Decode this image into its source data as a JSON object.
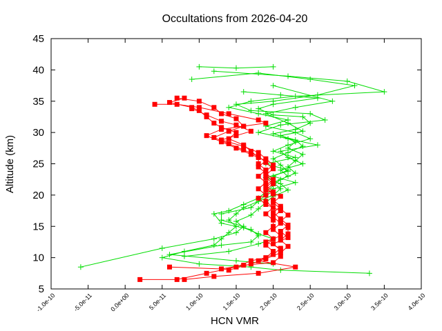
{
  "chart_data": {
    "type": "line",
    "title": "Occultations from 2026-04-20",
    "xlabel": "HCN VMR",
    "ylabel": "Altitude (km)",
    "xlim": [
      -1e-10,
      4e-10
    ],
    "ylim": [
      5,
      45
    ],
    "x_ticks": [
      "-1.0e-10",
      "-5.0e-11",
      "0.0e+00",
      "5.0e-11",
      "1.0e-10",
      "1.5e-10",
      "2.0e-10",
      "2.5e-10",
      "3.0e-10",
      "3.5e-10",
      "4.0e-10"
    ],
    "y_ticks": [
      "5",
      "10",
      "15",
      "20",
      "25",
      "30",
      "35",
      "40",
      "45"
    ],
    "grid": false,
    "legend": "none",
    "series": [
      {
        "color": "#00dd00",
        "marker": "plus",
        "profiles": [
          [
            [
              1e-10,
              40.5
            ],
            [
              1.5e-10,
              40.3
            ],
            [
              2e-10,
              40.5
            ]
          ],
          [
            [
              1.2e-10,
              39.8
            ],
            [
              2.2e-10,
              39.0
            ],
            [
              3e-10,
              38.2
            ],
            [
              3.5e-10,
              36.5
            ],
            [
              2.3e-10,
              35.8
            ],
            [
              1.7e-10,
              35.0
            ],
            [
              1.4e-10,
              34.0
            ],
            [
              1.8e-10,
              33.0
            ],
            [
              2.2e-10,
              32.0
            ],
            [
              1.9e-10,
              31.0
            ],
            [
              2.3e-10,
              30.0
            ],
            [
              2.5e-10,
              29.0
            ],
            [
              2.2e-10,
              28.0
            ],
            [
              2e-10,
              27.0
            ],
            [
              2.3e-10,
              26.0
            ],
            [
              1.9e-10,
              25.0
            ],
            [
              2.2e-10,
              24.0
            ],
            [
              2e-10,
              23.0
            ],
            [
              2.3e-10,
              22.0
            ],
            [
              2e-10,
              21.0
            ],
            [
              1.9e-10,
              20.0
            ],
            [
              1.8e-10,
              19.0
            ],
            [
              1.6e-10,
              18.0
            ],
            [
              1.5e-10,
              17.0
            ],
            [
              1.4e-10,
              16.0
            ],
            [
              1.5e-10,
              15.0
            ],
            [
              1.4e-10,
              14.0
            ],
            [
              1.3e-10,
              13.0
            ],
            [
              1.2e-10,
              12.0
            ],
            [
              8e-11,
              11.0
            ],
            [
              5e-11,
              10.0
            ],
            [
              1e-10,
              9.0
            ],
            [
              1.7e-10,
              8.5
            ],
            [
              2.1e-10,
              8.0
            ],
            [
              3.3e-10,
              7.5
            ]
          ],
          [
            [
              9e-11,
              38.5
            ],
            [
              1.8e-10,
              39.5
            ],
            [
              2.5e-10,
              38.5
            ],
            [
              3.1e-10,
              37.5
            ],
            [
              2.6e-10,
              36.0
            ],
            [
              2e-10,
              35.0
            ],
            [
              1.5e-10,
              34.5
            ],
            [
              1.7e-10,
              33.5
            ],
            [
              2.5e-10,
              33.0
            ],
            [
              2.7e-10,
              32.0
            ],
            [
              2.1e-10,
              31.2
            ],
            [
              1.8e-10,
              30.0
            ],
            [
              2.2e-10,
              29.0
            ],
            [
              2.6e-10,
              28.0
            ],
            [
              2.1e-10,
              27.0
            ],
            [
              2.2e-10,
              26.0
            ],
            [
              2.4e-10,
              25.0
            ],
            [
              2.1e-10,
              24.0
            ],
            [
              2.2e-10,
              23.0
            ],
            [
              2e-10,
              22.0
            ],
            [
              2.1e-10,
              21.0
            ],
            [
              2e-10,
              20.0
            ],
            [
              1.8e-10,
              19.0
            ],
            [
              1.7e-10,
              18.0
            ],
            [
              1.3e-10,
              17.0
            ],
            [
              1.3e-10,
              16.0
            ],
            [
              1.6e-10,
              15.0
            ],
            [
              1.5e-10,
              14.0
            ],
            [
              1.2e-10,
              13.0
            ],
            [
              5e-11,
              11.5
            ],
            [
              -6e-11,
              8.5
            ]
          ],
          [
            [
              2e-10,
              37.5
            ],
            [
              2.8e-10,
              35.0
            ],
            [
              2.3e-10,
              34.0
            ],
            [
              1.9e-10,
              33.0
            ],
            [
              2.2e-10,
              31.5
            ],
            [
              2.4e-10,
              30.2
            ],
            [
              2.1e-10,
              29.5
            ],
            [
              2.3e-10,
              28.5
            ],
            [
              2.2e-10,
              27.5
            ],
            [
              2.4e-10,
              26.5
            ],
            [
              2.3e-10,
              25.5
            ],
            [
              2.2e-10,
              24.5
            ],
            [
              2.3e-10,
              23.5
            ],
            [
              2.1e-10,
              22.5
            ],
            [
              2e-10,
              21.5
            ],
            [
              1.8e-10,
              19.5
            ],
            [
              1.6e-10,
              18.5
            ],
            [
              1.4e-10,
              17.5
            ],
            [
              1.2e-10,
              17.0
            ],
            [
              1.3e-10,
              15.5
            ],
            [
              1.7e-10,
              14.5
            ],
            [
              1.8e-10,
              13.5
            ],
            [
              1.7e-10,
              12.5
            ],
            [
              1.3e-10,
              12.0
            ],
            [
              6e-11,
              10.5
            ],
            [
              1.5e-10,
              9.5
            ],
            [
              2e-10,
              9.0
            ]
          ],
          [
            [
              1.6e-10,
              36.5
            ],
            [
              2.1e-10,
              36.0
            ],
            [
              2.6e-10,
              35.5
            ],
            [
              2e-10,
              34.5
            ],
            [
              1.8e-10,
              33.8
            ],
            [
              2e-10,
              32.8
            ],
            [
              2.4e-10,
              32.5
            ],
            [
              2.5e-10,
              31.5
            ],
            [
              2.3e-10,
              30.5
            ],
            [
              2e-10,
              29.8
            ],
            [
              2.3e-10,
              28.8
            ],
            [
              2.4e-10,
              27.8
            ],
            [
              2.2e-10,
              26.8
            ],
            [
              2e-10,
              25.8
            ],
            [
              2.1e-10,
              24.8
            ],
            [
              2.2e-10,
              23.8
            ],
            [
              1.9e-10,
              22.8
            ],
            [
              2.1e-10,
              21.8
            ],
            [
              2.2e-10,
              20.8
            ],
            [
              2e-10,
              19.8
            ],
            [
              1.9e-10,
              18.8
            ],
            [
              1.8e-10,
              17.8
            ],
            [
              1.7e-10,
              16.8
            ],
            [
              1.5e-10,
              15.8
            ],
            [
              1.6e-10,
              14.8
            ],
            [
              1.8e-10,
              13.8
            ],
            [
              2e-10,
              13.0
            ],
            [
              1.8e-10,
              12.2
            ],
            [
              1.4e-10,
              11.0
            ],
            [
              8e-11,
              10.2
            ]
          ]
        ]
      },
      {
        "color": "#ff0000",
        "marker": "square",
        "profiles": [
          [
            [
              8e-11,
              35.5
            ],
            [
              6e-11,
              34.8
            ],
            [
              9e-11,
              34.0
            ],
            [
              1e-10,
              33.5
            ],
            [
              1.1e-10,
              32.5
            ],
            [
              1.2e-10,
              31.5
            ],
            [
              1.3e-10,
              30.8
            ],
            [
              1.5e-10,
              30.0
            ],
            [
              1.4e-10,
              29.0
            ],
            [
              1.6e-10,
              28.0
            ],
            [
              1.7e-10,
              27.0
            ],
            [
              1.8e-10,
              26.0
            ],
            [
              1.8e-10,
              25.0
            ],
            [
              1.9e-10,
              24.0
            ],
            [
              1.8e-10,
              23.0
            ],
            [
              1.9e-10,
              22.0
            ],
            [
              1.8e-10,
              21.0
            ],
            [
              1.9e-10,
              20.0
            ],
            [
              1.9e-10,
              19.0
            ],
            [
              2e-10,
              18.0
            ],
            [
              1.9e-10,
              17.0
            ],
            [
              2e-10,
              16.0
            ],
            [
              2e-10,
              15.0
            ],
            [
              1.9e-10,
              14.0
            ],
            [
              2e-10,
              13.0
            ],
            [
              1.9e-10,
              12.0
            ],
            [
              2e-10,
              11.0
            ],
            [
              1.9e-10,
              10.0
            ],
            [
              1.7e-10,
              9.5
            ],
            [
              1.5e-10,
              8.5
            ],
            [
              1.1e-10,
              7.5
            ],
            [
              7e-11,
              6.5
            ],
            [
              2e-11,
              6.5
            ]
          ],
          [
            [
              4e-11,
              34.5
            ],
            [
              7e-11,
              34.5
            ],
            [
              1e-10,
              34.0
            ],
            [
              1.4e-10,
              33.0
            ],
            [
              1.8e-10,
              32.0
            ],
            [
              1.9e-10,
              31.5
            ],
            [
              1.6e-10,
              31.0
            ],
            [
              1.3e-10,
              30.5
            ],
            [
              1.1e-10,
              29.5
            ],
            [
              1.3e-10,
              28.5
            ],
            [
              1.5e-10,
              27.5
            ],
            [
              1.7e-10,
              26.5
            ],
            [
              1.9e-10,
              25.5
            ],
            [
              1.8e-10,
              24.5
            ],
            [
              1.9e-10,
              23.5
            ],
            [
              2e-10,
              22.5
            ],
            [
              1.9e-10,
              21.5
            ],
            [
              2e-10,
              20.5
            ],
            [
              1.8e-10,
              19.5
            ],
            [
              1.9e-10,
              18.5
            ],
            [
              2.1e-10,
              17.5
            ],
            [
              2e-10,
              16.5
            ],
            [
              2.1e-10,
              15.5
            ],
            [
              2e-10,
              14.5
            ],
            [
              2.1e-10,
              13.5
            ],
            [
              1.9e-10,
              12.5
            ],
            [
              2.1e-10,
              11.5
            ],
            [
              2e-10,
              10.5
            ],
            [
              1.8e-10,
              9.5
            ],
            [
              2.3e-10,
              8.5
            ],
            [
              1.8e-10,
              7.5
            ],
            [
              1.2e-10,
              7.0
            ],
            [
              8e-11,
              6.5
            ]
          ],
          [
            [
              7e-11,
              35.5
            ],
            [
              1e-10,
              35.0
            ],
            [
              1.2e-10,
              34.0
            ],
            [
              1.3e-10,
              33.0
            ],
            [
              1.5e-10,
              32.2
            ],
            [
              1.6e-10,
              31.0
            ],
            [
              1.4e-10,
              30.2
            ],
            [
              1.2e-10,
              29.2
            ],
            [
              1.4e-10,
              28.2
            ],
            [
              1.6e-10,
              27.2
            ],
            [
              1.8e-10,
              26.2
            ],
            [
              1.9e-10,
              25.2
            ],
            [
              2e-10,
              24.2
            ],
            [
              1.9e-10,
              23.2
            ],
            [
              2e-10,
              22.2
            ],
            [
              1.9e-10,
              21.2
            ],
            [
              2e-10,
              20.2
            ],
            [
              2e-10,
              19.2
            ],
            [
              2.1e-10,
              18.2
            ],
            [
              2e-10,
              17.2
            ],
            [
              2.1e-10,
              16.2
            ],
            [
              2.2e-10,
              15.2
            ],
            [
              2.1e-10,
              14.2
            ],
            [
              2.2e-10,
              13.2
            ],
            [
              2e-10,
              12.2
            ],
            [
              2.1e-10,
              11.2
            ],
            [
              2.1e-10,
              10.2
            ],
            [
              2e-10,
              9.2
            ],
            [
              1.6e-10,
              8.8
            ],
            [
              1.3e-10,
              8.2
            ],
            [
              6e-11,
              8.5
            ]
          ],
          [
            [
              9e-11,
              33.8
            ],
            [
              1.1e-10,
              32.8
            ],
            [
              1.3e-10,
              31.8
            ],
            [
              1.5e-10,
              31.2
            ],
            [
              1.7e-10,
              30.2
            ],
            [
              1.5e-10,
              29.5
            ],
            [
              1.3e-10,
              28.8
            ],
            [
              1.6e-10,
              27.8
            ],
            [
              1.8e-10,
              26.8
            ],
            [
              1.9e-10,
              25.8
            ],
            [
              2e-10,
              24.8
            ],
            [
              1.9e-10,
              23.8
            ],
            [
              1.9e-10,
              22.8
            ],
            [
              2e-10,
              21.8
            ],
            [
              1.9e-10,
              20.8
            ],
            [
              2.1e-10,
              19.8
            ],
            [
              2e-10,
              18.8
            ],
            [
              2.1e-10,
              17.8
            ],
            [
              2.2e-10,
              16.8
            ],
            [
              2.1e-10,
              15.8
            ],
            [
              2.2e-10,
              14.8
            ],
            [
              2.2e-10,
              13.8
            ],
            [
              2.1e-10,
              12.8
            ],
            [
              2.2e-10,
              11.8
            ],
            [
              2.1e-10,
              10.8
            ],
            [
              1.9e-10,
              9.8
            ],
            [
              1.7e-10,
              9.0
            ],
            [
              1.4e-10,
              8.0
            ]
          ]
        ]
      }
    ]
  }
}
